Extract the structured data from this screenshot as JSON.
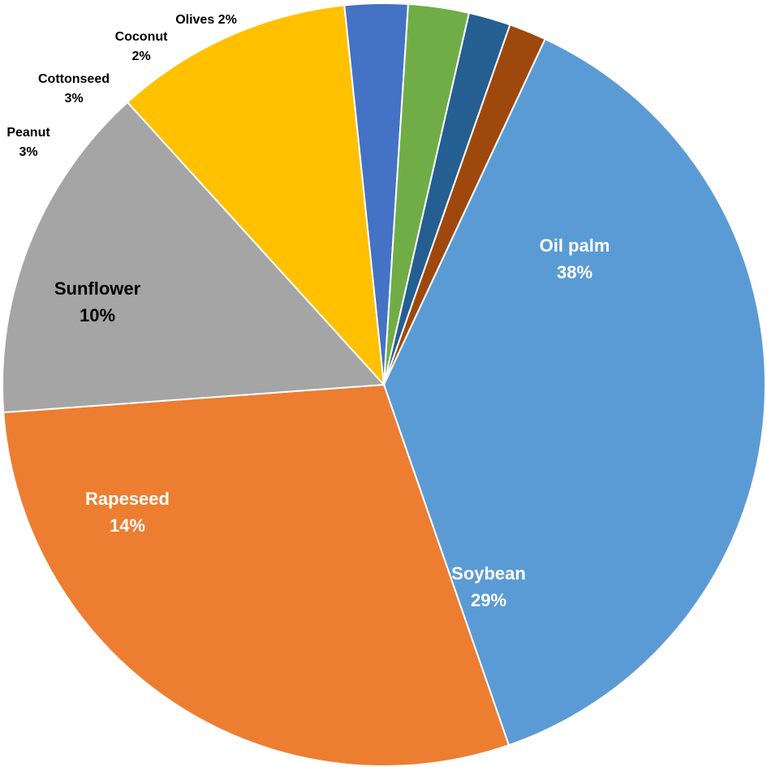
{
  "chart_data": {
    "type": "pie",
    "title": "",
    "start_angle_deg": -65,
    "direction": "clockwise",
    "slices": [
      {
        "name": "Oil palm",
        "pct_label": "38%",
        "value": 38.2,
        "color": "#5B9BD5",
        "label_color": "#ffffff",
        "label_position": "inside",
        "label_style": "stacked"
      },
      {
        "name": "Soybean",
        "pct_label": "29%",
        "value": 29.5,
        "color": "#ED7D31",
        "label_color": "#ffffff",
        "label_position": "inside",
        "label_style": "stacked"
      },
      {
        "name": "Rapeseed",
        "pct_label": "14%",
        "value": 14.6,
        "color": "#A5A5A5",
        "label_color": "#ffffff",
        "label_position": "inside",
        "label_style": "stacked"
      },
      {
        "name": "Sunflower",
        "pct_label": "10%",
        "value": 10.2,
        "color": "#FFC000",
        "label_color": "#000000",
        "label_position": "inside",
        "label_style": "stacked"
      },
      {
        "name": "Peanut",
        "pct_label": "3%",
        "value": 2.7,
        "color": "#4472C4",
        "label_color": "#000000",
        "label_position": "outside",
        "label_style": "stacked"
      },
      {
        "name": "Cottonseed",
        "pct_label": "3%",
        "value": 2.6,
        "color": "#70AD47",
        "label_color": "#000000",
        "label_position": "outside",
        "label_style": "stacked"
      },
      {
        "name": "Coconut",
        "pct_label": "2%",
        "value": 1.8,
        "color": "#255E91",
        "label_color": "#000000",
        "label_position": "outside",
        "label_style": "stacked"
      },
      {
        "name": "Olives",
        "pct_label": "2%",
        "value": 1.6,
        "color": "#9E480E",
        "label_color": "#000000",
        "label_position": "outside",
        "label_style": "inline"
      }
    ]
  }
}
